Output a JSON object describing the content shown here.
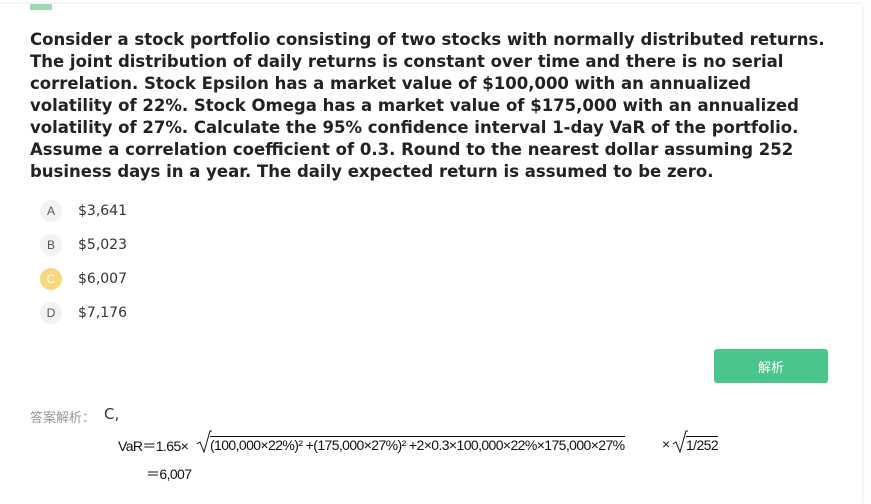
{
  "question": {
    "text": "Consider a stock portfolio consisting of two stocks with normally distributed returns. The joint distribution of daily returns is constant over time and there is no serial correlation. Stock Epsilon has a market value of $100,000 with an annualized volatility of 22%. Stock Omega has a market value of $175,000 with an annualized volatility of 27%. Calculate the 95% confidence interval 1-day VaR of the portfolio. Assume a correlation coefficient of 0.3. Round to the nearest dollar assuming 252 business days in a year. The daily expected return is assumed to be zero.",
    "options": [
      {
        "label": "A",
        "text": "$3,641",
        "highlighted": false
      },
      {
        "label": "B",
        "text": "$5,023",
        "highlighted": false
      },
      {
        "label": "C",
        "text": "$6,007",
        "highlighted": true
      },
      {
        "label": "D",
        "text": "$7,176",
        "highlighted": false
      }
    ]
  },
  "button": {
    "label": "解析"
  },
  "answer": {
    "heading": "答案解析：",
    "value": "C,",
    "formula": {
      "lhs": "VaR＝1.65×",
      "radicand": "(100,000×22%)² +(175,000×27%)² +2×0.3×100,000×22%×175,000×27%",
      "times": "×",
      "radicand2": "1/252",
      "result": "＝6,007"
    }
  }
}
